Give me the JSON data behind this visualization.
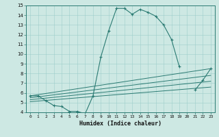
{
  "xlabel": "Humidex (Indice chaleur)",
  "ylabel": "",
  "bg_color": "#cde8e3",
  "line_color": "#2a7a72",
  "xlim": [
    -0.5,
    23.5
  ],
  "ylim": [
    4,
    15
  ],
  "xticks": [
    0,
    1,
    2,
    3,
    4,
    5,
    6,
    7,
    8,
    9,
    10,
    11,
    12,
    13,
    14,
    15,
    16,
    17,
    18,
    19,
    20,
    21,
    22,
    23
  ],
  "yticks": [
    4,
    5,
    6,
    7,
    8,
    9,
    10,
    11,
    12,
    13,
    14,
    15
  ],
  "series": [
    {
      "x": [
        0,
        1,
        2,
        3,
        4,
        5,
        6,
        7,
        8,
        9,
        10,
        11,
        12,
        13,
        14,
        15,
        16,
        17,
        18,
        19,
        20,
        21,
        22,
        23
      ],
      "y": [
        5.7,
        5.7,
        5.2,
        4.7,
        4.6,
        4.1,
        4.1,
        3.85,
        5.7,
        9.7,
        12.4,
        14.7,
        14.7,
        14.1,
        14.6,
        14.3,
        13.9,
        13.0,
        11.5,
        8.7,
        null,
        6.3,
        7.3,
        8.5
      ]
    },
    {
      "x": [
        0,
        23
      ],
      "y": [
        5.7,
        8.5
      ]
    },
    {
      "x": [
        0,
        23
      ],
      "y": [
        5.5,
        7.8
      ]
    },
    {
      "x": [
        0,
        23
      ],
      "y": [
        5.3,
        7.2
      ]
    },
    {
      "x": [
        0,
        23
      ],
      "y": [
        5.1,
        6.6
      ]
    }
  ]
}
